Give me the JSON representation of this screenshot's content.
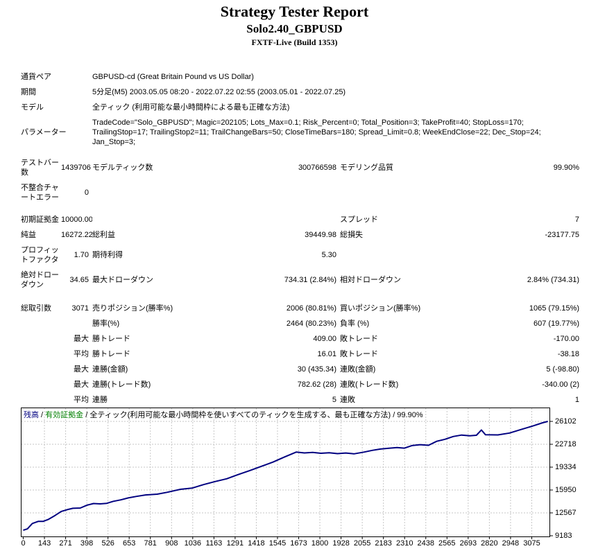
{
  "header": {
    "title": "Strategy Tester Report",
    "subtitle": "Solo2.40_GBPUSD",
    "build": "FXTF-Live (Build 1353)"
  },
  "report": {
    "rows": {
      "currency_pair": {
        "l1": "通貨ペア",
        "v1": "GBPUSD-cd (Great Britain Pound vs US Dollar)"
      },
      "period": {
        "l1": "期間",
        "v1": "5分足(M5) 2003.05.05 08:20 - 2022.07.22 02:55 (2003.05.01 - 2022.07.25)"
      },
      "model": {
        "l1": "モデル",
        "v1": "全ティック (利用可能な最小時間枠による最も正確な方法)"
      },
      "parameters": {
        "l1": "パラメーター",
        "v1": "TradeCode=\"Solo_GBPUSD\"; Magic=202105; Lots_Max=0.1; Risk_Percent=0; Total_Position=3; TakeProfit=40; StopLoss=170; TrailingStop=17; TrailingStop2=11; TrailChangeBars=50; CloseTimeBars=180; Spread_Limit=0.8; WeekEndClose=22; Dec_Stop=24; Jan_Stop=3;"
      },
      "bars_tested": {
        "l1": "テストバー数",
        "v1": "1439706",
        "l2": "モデルティック数",
        "v2": "300766598",
        "l3": "モデリング品質",
        "v3": "99.90%"
      },
      "mismatched_errors": {
        "l1": "不整合チャートエラー",
        "v1": "0"
      },
      "initial_deposit": {
        "l1": "初期証拠金",
        "v1": "10000.00",
        "l3": "スプレッド",
        "v3": "7"
      },
      "net_profit": {
        "l1": "純益",
        "v1": "16272.22",
        "l2": "総利益",
        "v2": "39449.98",
        "l3": "総損失",
        "v3": "-23177.75"
      },
      "profit_factor": {
        "l1": "プロフィットファクタ",
        "v1": "1.70",
        "l2": "期待利得",
        "v2": "5.30"
      },
      "absolute_drawdown": {
        "l1": "絶対ドローダウン",
        "v1": "34.65",
        "l2": "最大ドローダウン",
        "v2": "734.31 (2.84%)",
        "l3": "相対ドローダウン",
        "v3": "2.84% (734.31)"
      },
      "total_trades": {
        "l1": "総取引数",
        "v1": "3071",
        "l2": "売りポジション(勝率%)",
        "v2": "2006 (80.81%)",
        "l3": "買いポジション(勝率%)",
        "v3": "1065 (79.15%)"
      },
      "win_rate": {
        "l2": "勝率(%)",
        "v2": "2464 (80.23%)",
        "l3": "負率 (%)",
        "v3": "607 (19.77%)"
      },
      "largest_trade": {
        "q": "最大",
        "l2": "勝トレード",
        "v2": "409.00",
        "l3": "敗トレード",
        "v3": "-170.00"
      },
      "average_trade": {
        "q": "平均",
        "l2": "勝トレード",
        "v2": "16.01",
        "l3": "敗トレード",
        "v3": "-38.18"
      },
      "max_consecutive_amount": {
        "q": "最大",
        "l2": "連勝(金額)",
        "v2": "30 (435.34)",
        "l3": "連敗(金額)",
        "v3": "5 (-98.80)"
      },
      "max_consecutive_count": {
        "q": "最大",
        "l2": "連勝(トレード数)",
        "v2": "782.62 (28)",
        "l3": "連敗(トレード数)",
        "v3": "-340.00 (2)"
      },
      "avg_consecutive": {
        "q": "平均",
        "l2": "連勝",
        "v2": "5",
        "l3": "連敗",
        "v3": "1"
      }
    }
  },
  "chart_data": {
    "type": "line",
    "title_segments": [
      {
        "text": "残高",
        "color": "#000080"
      },
      {
        "text": " / ",
        "color": "#000000"
      },
      {
        "text": "有効証拠金",
        "color": "#008000"
      },
      {
        "text": " / 全ティック(利用可能な最小時間枠を使いすべてのティックを生成する、最も正確な方法) / 99.90%",
        "color": "#000000"
      }
    ],
    "xlabel": "",
    "ylabel": "",
    "x_ticks": [
      0,
      143,
      271,
      398,
      526,
      653,
      781,
      908,
      1036,
      1163,
      1291,
      1418,
      1545,
      1673,
      1800,
      1928,
      2055,
      2183,
      2310,
      2438,
      2565,
      2693,
      2820,
      2948,
      3075
    ],
    "y_ticks": [
      26102,
      22718,
      19334,
      15950,
      12567,
      9183
    ],
    "xlim": [
      0,
      3172
    ],
    "ylim": [
      9183,
      28150
    ],
    "grid": "dashed",
    "grid_color": "#c6c6c6",
    "line_color": "#000080",
    "series": [
      {
        "name": "残高",
        "points": [
          [
            0,
            10000
          ],
          [
            25,
            10200
          ],
          [
            55,
            11000
          ],
          [
            90,
            11300
          ],
          [
            120,
            11300
          ],
          [
            150,
            11580
          ],
          [
            190,
            12150
          ],
          [
            230,
            12780
          ],
          [
            265,
            13040
          ],
          [
            300,
            13240
          ],
          [
            345,
            13280
          ],
          [
            385,
            13700
          ],
          [
            425,
            13950
          ],
          [
            465,
            13900
          ],
          [
            505,
            13980
          ],
          [
            545,
            14280
          ],
          [
            590,
            14490
          ],
          [
            635,
            14780
          ],
          [
            685,
            15010
          ],
          [
            740,
            15220
          ],
          [
            810,
            15330
          ],
          [
            870,
            15610
          ],
          [
            950,
            16050
          ],
          [
            1020,
            16230
          ],
          [
            1090,
            16750
          ],
          [
            1160,
            17200
          ],
          [
            1230,
            17610
          ],
          [
            1300,
            18240
          ],
          [
            1370,
            18830
          ],
          [
            1440,
            19460
          ],
          [
            1510,
            20080
          ],
          [
            1580,
            20840
          ],
          [
            1650,
            21560
          ],
          [
            1700,
            21440
          ],
          [
            1750,
            21520
          ],
          [
            1800,
            21380
          ],
          [
            1850,
            21470
          ],
          [
            1900,
            21330
          ],
          [
            1950,
            21430
          ],
          [
            2000,
            21300
          ],
          [
            2060,
            21560
          ],
          [
            2110,
            21820
          ],
          [
            2160,
            22010
          ],
          [
            2210,
            22120
          ],
          [
            2260,
            22230
          ],
          [
            2305,
            22140
          ],
          [
            2350,
            22520
          ],
          [
            2400,
            22660
          ],
          [
            2450,
            22560
          ],
          [
            2500,
            23160
          ],
          [
            2550,
            23460
          ],
          [
            2600,
            23870
          ],
          [
            2650,
            24080
          ],
          [
            2700,
            23980
          ],
          [
            2740,
            24050
          ],
          [
            2770,
            24830
          ],
          [
            2795,
            24120
          ],
          [
            2870,
            24100
          ],
          [
            2940,
            24380
          ],
          [
            3010,
            24900
          ],
          [
            3080,
            25420
          ],
          [
            3140,
            25900
          ],
          [
            3172,
            26100
          ]
        ]
      }
    ]
  }
}
